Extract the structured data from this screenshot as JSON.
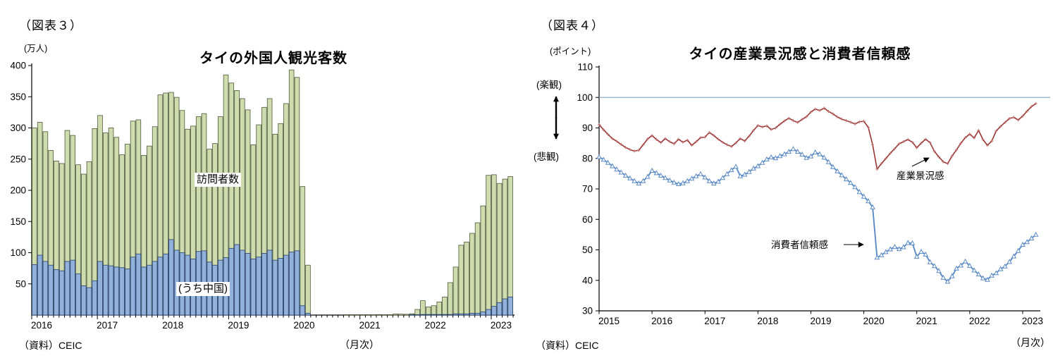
{
  "figure3": {
    "tag": "（図表３）",
    "unit": "(万人)",
    "title": "タイの外国人観光客数",
    "source": "（資料）CEIC",
    "x_unit": "（月次）",
    "chart_data": {
      "type": "bar",
      "ylim": [
        0,
        400
      ],
      "y_ticks": [
        400,
        350,
        300,
        250,
        200,
        150,
        100,
        50
      ],
      "x_labels": [
        "2016",
        "2017",
        "2018",
        "2019",
        "2020",
        "2021",
        "2022",
        "2023"
      ],
      "months_per_tick": 12,
      "grid": false,
      "series": [
        {
          "name": "訪問者数",
          "fill": "#cfdcae",
          "border": "#4e583a",
          "values": [
            300,
            309,
            294,
            264,
            247,
            243,
            296,
            288,
            241,
            226,
            246,
            299,
            320,
            292,
            300,
            285,
            257,
            274,
            311,
            313,
            256,
            271,
            302,
            353,
            356,
            357,
            349,
            328,
            298,
            303,
            318,
            323,
            266,
            275,
            318,
            385,
            372,
            360,
            347,
            329,
            273,
            305,
            333,
            347,
            290,
            307,
            339,
            393,
            381,
            206,
            80,
            0,
            0,
            0,
            0,
            0,
            0,
            0.1,
            0.2,
            0.7,
            0.7,
            0.6,
            0.7,
            0.8,
            0.6,
            0.6,
            1.8,
            1.5,
            1.3,
            2.1,
            9,
            23,
            13,
            15,
            21,
            29,
            52,
            77,
            112,
            117,
            131,
            148,
            175,
            224,
            225,
            211,
            218,
            222
          ]
        },
        {
          "name": "(うち中国)",
          "fill": "#92b2dc",
          "border": "#24406b",
          "values": [
            81,
            96,
            86,
            80,
            73,
            71,
            86,
            88,
            66,
            47,
            44,
            55,
            86,
            80,
            79,
            77,
            76,
            74,
            93,
            98,
            77,
            80,
            86,
            93,
            98,
            121,
            104,
            100,
            96,
            90,
            102,
            103,
            85,
            80,
            88,
            92,
            107,
            113,
            104,
            99,
            90,
            93,
            99,
            104,
            88,
            91,
            96,
            101,
            103,
            15,
            3,
            0,
            0,
            0,
            0,
            0,
            0,
            0,
            0,
            0,
            0,
            0,
            0,
            0,
            0,
            0,
            0,
            0,
            0,
            0.2,
            0.4,
            1,
            1,
            1,
            1,
            1,
            1,
            2,
            2,
            2,
            3,
            3,
            5,
            9,
            14,
            20,
            26,
            29
          ]
        }
      ]
    }
  },
  "figure4": {
    "tag": "（図表４）",
    "unit": "(ポイント)",
    "title": "タイの産業景況感と消費者信頼感",
    "optimism": "(楽観)",
    "pessimism": "(悲観)",
    "source": "（資料）CEIC",
    "x_unit": "（月次）",
    "chart_data": {
      "type": "line",
      "ylim": [
        30,
        110
      ],
      "y_ticks": [
        110,
        100,
        90,
        80,
        70,
        60,
        50,
        40,
        30
      ],
      "x_labels": [
        "2015",
        "2016",
        "2017",
        "2018",
        "2019",
        "2020",
        "2021",
        "2022",
        "2023"
      ],
      "months_per_tick": 12,
      "grid": false,
      "ref_line": {
        "value": 100,
        "color": "#8eb0cf"
      },
      "series": [
        {
          "name": "産業景況感",
          "color": "#993634",
          "marker": "cross",
          "values": [
            91.1,
            89.4,
            87.9,
            86.5,
            85.6,
            84.6,
            83.6,
            82.9,
            82.4,
            82.7,
            84.5,
            86.4,
            87.5,
            86.2,
            85.2,
            86.5,
            85.5,
            84.8,
            86.3,
            85.3,
            86.0,
            84.3,
            85.5,
            86.8,
            87.0,
            88.5,
            87.5,
            86.3,
            85.3,
            84.5,
            83.9,
            85.1,
            86.5,
            85.7,
            87.3,
            89.2,
            90.8,
            90.3,
            90.7,
            89.5,
            90.0,
            91.2,
            92.3,
            93.2,
            92.4,
            91.8,
            92.8,
            93.7,
            95.2,
            96.2,
            95.7,
            96.5,
            95.4,
            94.6,
            93.6,
            92.9,
            92.4,
            91.9,
            91.3,
            92.0,
            92.2,
            90.2,
            84.5,
            76.5,
            78.3,
            80.0,
            81.7,
            83.2,
            84.8,
            85.5,
            86.2,
            85.3,
            83.5,
            85.0,
            86.3,
            85.2,
            82.3,
            80.5,
            78.9,
            78.3,
            80.8,
            82.8,
            85.0,
            86.8,
            88.0,
            86.7,
            89.2,
            86.2,
            84.3,
            85.7,
            89.0,
            90.5,
            91.8,
            93.1,
            93.5,
            92.6,
            93.9,
            95.5,
            97.0,
            98.0
          ]
        },
        {
          "name": "消費者信頼感",
          "color": "#5b8ac5",
          "marker": "triangle",
          "values": [
            80.5,
            79.6,
            78.6,
            77.5,
            76.4,
            75.4,
            74.4,
            73.5,
            72.6,
            71.8,
            72.6,
            74.0,
            76.0,
            75.2,
            74.4,
            73.6,
            72.8,
            72.1,
            71.6,
            71.9,
            72.6,
            73.4,
            74.2,
            74.9,
            73.8,
            72.6,
            71.8,
            72.4,
            73.6,
            74.9,
            76.2,
            77.3,
            74.2,
            74.7,
            75.6,
            76.7,
            77.5,
            78.6,
            79.7,
            80.4,
            80.1,
            80.8,
            81.4,
            82.2,
            83.1,
            82.2,
            81.3,
            80.2,
            80.7,
            82.0,
            81.4,
            80.3,
            78.8,
            77.2,
            75.8,
            74.5,
            73.2,
            72.0,
            70.6,
            69.0,
            67.5,
            66.0,
            64.0,
            47.5,
            48.3,
            49.3,
            50.2,
            51.0,
            50.3,
            50.9,
            52.3,
            52.2,
            47.8,
            49.4,
            48.5,
            46.0,
            44.7,
            43.1,
            40.9,
            39.6,
            41.4,
            43.9,
            44.9,
            46.2,
            44.8,
            43.3,
            42.0,
            40.7,
            40.2,
            41.6,
            42.4,
            43.7,
            44.6,
            46.1,
            47.9,
            49.7,
            51.7,
            52.6,
            53.8,
            55.0
          ]
        }
      ]
    }
  }
}
